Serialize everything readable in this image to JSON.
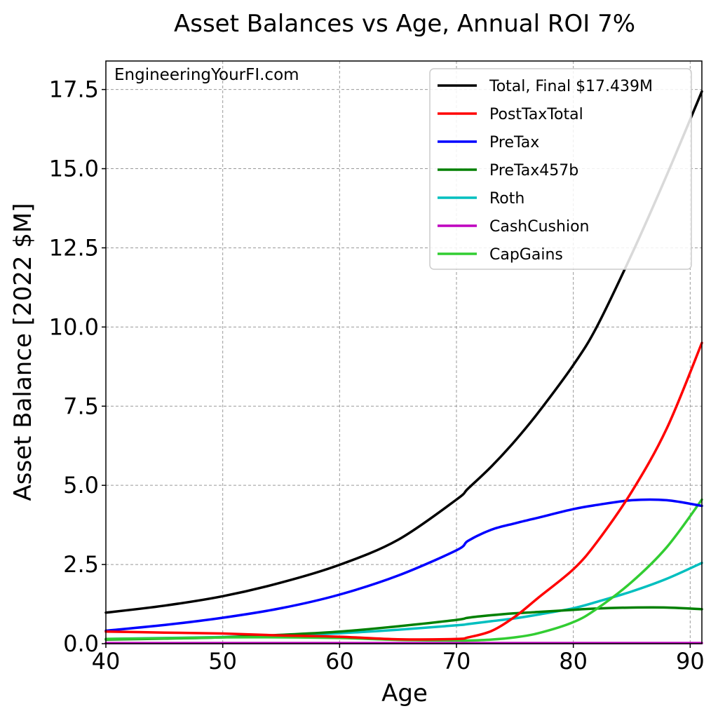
{
  "chart_data": {
    "type": "line",
    "title": "Asset Balances vs Age, Annual ROI 7%",
    "xlabel": "Age",
    "ylabel": "Asset Balance [2022 $M]",
    "watermark": "EngineeringYourFI.com",
    "xlim": [
      40,
      91
    ],
    "ylim": [
      0,
      18.4
    ],
    "x_ticks": [
      40,
      50,
      60,
      70,
      80,
      90
    ],
    "x_tick_labels": [
      "40",
      "50",
      "60",
      "70",
      "80",
      "90"
    ],
    "y_ticks": [
      0,
      2.5,
      5,
      7.5,
      10,
      12.5,
      15,
      17.5
    ],
    "y_tick_labels": [
      "0.0",
      "2.5",
      "5.0",
      "7.5",
      "10.0",
      "12.5",
      "15.0",
      "17.5"
    ],
    "grid": true,
    "legend_position": "upper right",
    "x": [
      40,
      45,
      50,
      55,
      60,
      65,
      70,
      71,
      73,
      75,
      77,
      80,
      82,
      85,
      88,
      91
    ],
    "series": [
      {
        "name": "Total, Final $17.439M",
        "color": "#000000",
        "values": [
          0.98,
          1.2,
          1.5,
          1.93,
          2.49,
          3.28,
          4.55,
          4.9,
          5.6,
          6.4,
          7.3,
          8.8,
          10.0,
          12.3,
          14.8,
          17.44
        ]
      },
      {
        "name": "PostTaxTotal",
        "color": "#ff0000",
        "values": [
          0.38,
          0.35,
          0.32,
          0.26,
          0.22,
          0.14,
          0.15,
          0.2,
          0.4,
          0.85,
          1.45,
          2.35,
          3.2,
          4.8,
          6.8,
          9.5
        ]
      },
      {
        "name": "PreTax",
        "color": "#0000ff",
        "values": [
          0.41,
          0.59,
          0.82,
          1.12,
          1.55,
          2.15,
          2.95,
          3.25,
          3.6,
          3.8,
          3.98,
          4.25,
          4.38,
          4.53,
          4.53,
          4.35
        ]
      },
      {
        "name": "PreTax457b",
        "color": "#008000",
        "values": [
          0.13,
          0.16,
          0.2,
          0.28,
          0.38,
          0.55,
          0.75,
          0.82,
          0.9,
          0.96,
          1.0,
          1.07,
          1.11,
          1.14,
          1.14,
          1.09
        ]
      },
      {
        "name": "Roth",
        "color": "#00bfbf",
        "values": [
          0.15,
          0.18,
          0.21,
          0.26,
          0.33,
          0.44,
          0.58,
          0.62,
          0.71,
          0.8,
          0.92,
          1.12,
          1.32,
          1.65,
          2.05,
          2.55
        ]
      },
      {
        "name": "CashCushion",
        "color": "#bf00bf",
        "values": [
          0.02,
          0.02,
          0.02,
          0.02,
          0.02,
          0.02,
          0.02,
          0.02,
          0.02,
          0.02,
          0.02,
          0.02,
          0.02,
          0.02,
          0.02,
          0.02
        ]
      },
      {
        "name": "CapGains",
        "color": "#32cd32",
        "values": [
          0.15,
          0.17,
          0.2,
          0.2,
          0.18,
          0.12,
          0.1,
          0.1,
          0.13,
          0.2,
          0.33,
          0.68,
          1.1,
          1.95,
          3.05,
          4.55
        ]
      }
    ]
  }
}
